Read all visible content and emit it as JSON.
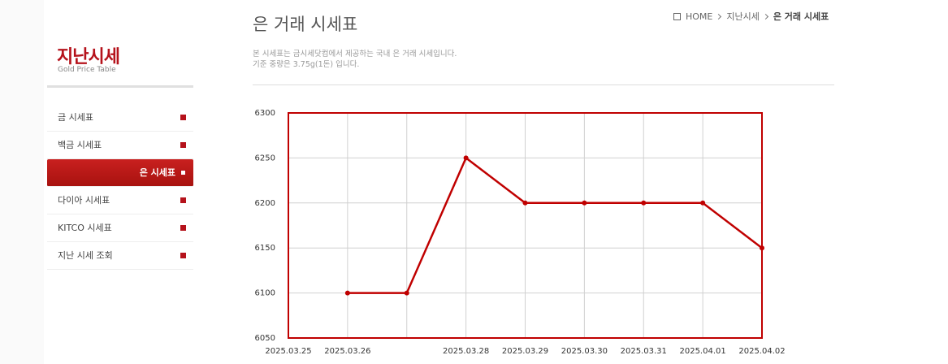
{
  "breadcrumb": [
    "HOME",
    "지난시세",
    "은 거래 시세표"
  ],
  "sidebar": {
    "title": "지난시세",
    "subtitle": "Gold Price Table",
    "menu": [
      "금 시세표",
      "백금 시세표",
      "은 시세표",
      "다이아 시세표",
      "KITCO 시세표",
      "지난 시세 조회"
    ]
  },
  "header": {
    "title": "은 거래 시세표",
    "description": [
      "본 시세표는 금시세닷컴에서 제공하는 국내 은 거래 시세입니다.",
      "기준 중량은 3.75g(1돈) 입니다."
    ]
  },
  "chart_data": {
    "type": "line",
    "categories": [
      "2025.03.25",
      "2025.03.26",
      null,
      "2025.03.28",
      "2025.03.29",
      "2025.03.30",
      "2025.03.31",
      "2025.04.01",
      "2025.04.02"
    ],
    "values": [
      null,
      6100,
      6100,
      6250,
      6200,
      6200,
      6200,
      6200,
      6150
    ],
    "color": "#c00000",
    "ylim": [
      6050,
      6300
    ],
    "yticks": [
      6050,
      6100,
      6150,
      6200,
      6250,
      6300
    ],
    "grid": true
  }
}
